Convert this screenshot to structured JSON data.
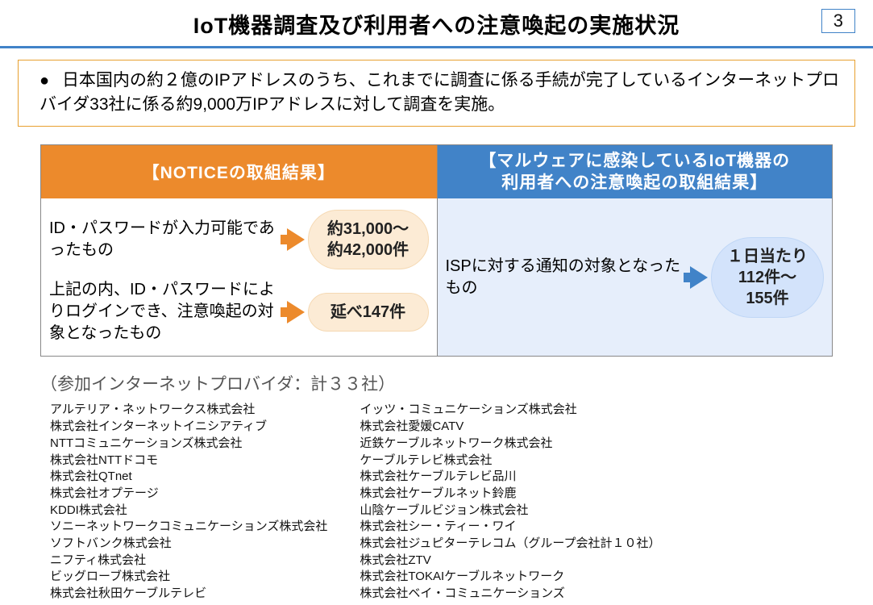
{
  "pageNumber": "3",
  "title": "IoT機器調査及び利用者への注意喚起の実施状況",
  "summary": "日本国内の約２億のIPアドレスのうち、これまでに調査に係る手続が完了しているインターネットプロバイダ33社に係る約9,000万IPアドレスに対して調査を実施。",
  "leftHeader": "【NOTICEの取組結果】",
  "rightHeader": "【マルウェアに感染しているIoT機器の\n利用者への注意喚起の取組結果】",
  "leftItem1Label": "ID・パスワードが入力可能であったもの",
  "leftItem1Value": "約31,000～\n約42,000件",
  "leftItem2Label": "上記の内、ID・パスワードによりログインでき、注意喚起の対象となったもの",
  "leftItem2Value": "延べ147件",
  "rightItemLabel": "ISPに対する通知の対象となったもの",
  "rightItemValue": "１日当たり\n112件～\n155件",
  "providerHeading": "（参加インターネットプロバイダ：計３３社）",
  "providersCol1": [
    "アルテリア・ネットワークス株式会社",
    "株式会社インターネットイニシアティブ",
    "NTTコミュニケーションズ株式会社",
    "株式会社NTTドコモ",
    "株式会社QTnet",
    "株式会社オプテージ",
    "KDDI株式会社",
    "ソニーネットワークコミュニケーションズ株式会社",
    "ソフトバンク株式会社",
    "ニフティ株式会社",
    "ビッグローブ株式会社",
    "株式会社秋田ケーブルテレビ"
  ],
  "providersCol2": [
    "イッツ・コミュニケーションズ株式会社",
    "株式会社愛媛CATV",
    "近鉄ケーブルネットワーク株式会社",
    "ケーブルテレビ株式会社",
    "株式会社ケーブルテレビ品川",
    "株式会社ケーブルネット鈴鹿",
    "山陰ケーブルビジョン株式会社",
    "株式会社シー・ティー・ワイ",
    "株式会社ジュピターテレコム（グループ会社計１０社）",
    "株式会社ZTV",
    "株式会社TOKAIケーブルネットワーク",
    "株式会社ベイ・コミュニケーションズ"
  ],
  "colors": {
    "accentBlue": "#4183c8",
    "accentOrange": "#ec8a2c",
    "boxBorder": "#e8a030",
    "pillOrangeBg": "#fcebd5",
    "pillBlueBg": "#d3e3fb",
    "rightBodyBg": "#e6eefb"
  }
}
